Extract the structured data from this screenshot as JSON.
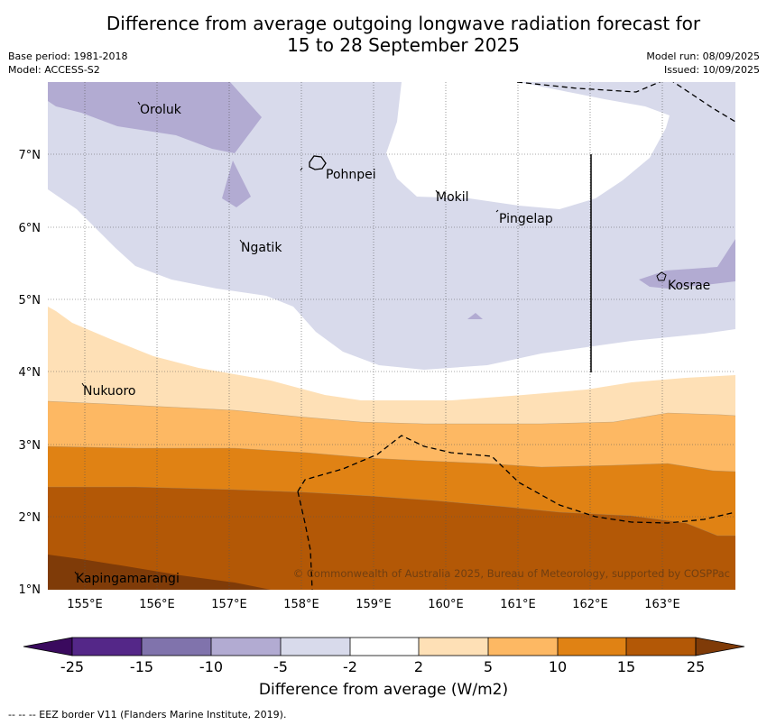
{
  "title_line1": "Difference from average outgoing longwave radiation forecast for",
  "title_line2": "15 to 28 September 2025",
  "meta_left": {
    "base_period": "Base period: 1981-2018",
    "model": "Model: ACCESS-S2"
  },
  "meta_right": {
    "model_run": "Model run: 08/09/2025",
    "issued": "Issued: 10/09/2025"
  },
  "map": {
    "lon_labels": [
      "155°E",
      "156°E",
      "157°E",
      "158°E",
      "159°E",
      "160°E",
      "161°E",
      "162°E",
      "163°E"
    ],
    "lat_labels": [
      "7°N",
      "6°N",
      "5°N",
      "4°N",
      "3°N",
      "2°N",
      "1°N"
    ],
    "places": [
      {
        "name": "Oroluk"
      },
      {
        "name": "Pohnpei"
      },
      {
        "name": "Mokil"
      },
      {
        "name": "Pingelap"
      },
      {
        "name": "Ngatik"
      },
      {
        "name": "Kosrae"
      },
      {
        "name": "Nukuoro"
      },
      {
        "name": "Kapingamarangi"
      }
    ],
    "copyright": "© Commonwealth of Australia 2025, Bureau of Meteorology, supported by COSPPac"
  },
  "colorbar": {
    "ticks": [
      "-25",
      "-15",
      "-10",
      "-5",
      "-2",
      "2",
      "5",
      "10",
      "15",
      "25"
    ],
    "colors": [
      "#3a0a5e",
      "#542788",
      "#8073ac",
      "#b2abd2",
      "#d8daeb",
      "#ffffff",
      "#fee0b6",
      "#fdb863",
      "#e08214",
      "#b35806",
      "#7f3b08"
    ],
    "label": "Difference from average (W/m2)"
  },
  "footer": "--  --  -- EEZ border V11 (Flanders Marine Institute, 2019)."
}
